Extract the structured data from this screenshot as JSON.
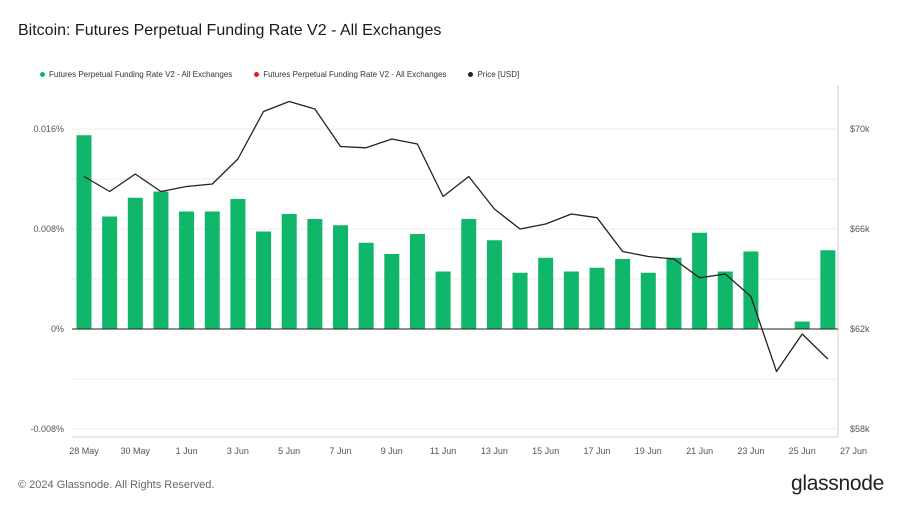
{
  "header": {
    "title": "Bitcoin: Futures Perpetual Funding Rate V2 - All Exchanges"
  },
  "legend": [
    {
      "label": "Futures Perpetual Funding Rate V2 - All Exchanges",
      "color": "#10b66a"
    },
    {
      "label": "Futures Perpetual Funding Rate V2 - All Exchanges",
      "color": "#e11d1d"
    },
    {
      "label": "Price [USD]",
      "color": "#222222"
    }
  ],
  "footer": {
    "copyright": "© 2024 Glassnode. All Rights Reserved.",
    "brand": "glassnode"
  },
  "chart_data": {
    "type": "bar",
    "dates": [
      "28 May",
      "29 May",
      "30 May",
      "31 May",
      "1 Jun",
      "2 Jun",
      "3 Jun",
      "4 Jun",
      "5 Jun",
      "6 Jun",
      "7 Jun",
      "8 Jun",
      "9 Jun",
      "10 Jun",
      "11 Jun",
      "12 Jun",
      "13 Jun",
      "14 Jun",
      "15 Jun",
      "16 Jun",
      "17 Jun",
      "18 Jun",
      "19 Jun",
      "20 Jun",
      "21 Jun",
      "22 Jun",
      "23 Jun",
      "24 Jun",
      "25 Jun",
      "26 Jun"
    ],
    "xtick_labels": [
      "28 May",
      "30 May",
      "1 Jun",
      "3 Jun",
      "5 Jun",
      "7 Jun",
      "9 Jun",
      "11 Jun",
      "13 Jun",
      "15 Jun",
      "17 Jun",
      "19 Jun",
      "21 Jun",
      "23 Jun",
      "25 Jun",
      "27 Jun"
    ],
    "series": [
      {
        "name": "Futures Perpetual Funding Rate V2 - All Exchanges",
        "axis": "left",
        "color": "#10b66a",
        "values": [
          0.0155,
          0.009,
          0.0105,
          0.011,
          0.0094,
          0.0094,
          0.0104,
          0.0078,
          0.0092,
          0.0088,
          0.0083,
          0.0069,
          0.006,
          0.0076,
          0.0046,
          0.0088,
          0.0071,
          0.0045,
          0.0057,
          0.0046,
          0.0049,
          0.0056,
          0.0045,
          0.0057,
          0.0077,
          0.0046,
          0.0062,
          null,
          0.0006,
          0.0063
        ]
      },
      {
        "name": "Price [USD]",
        "axis": "right",
        "color": "#222222",
        "values": [
          68100,
          67500,
          68200,
          67500,
          67700,
          67800,
          68800,
          70700,
          71100,
          70800,
          69300,
          69250,
          69600,
          69400,
          67300,
          68100,
          66800,
          66000,
          66200,
          66600,
          66450,
          65100,
          64900,
          64800,
          64050,
          64200,
          63300,
          60300,
          61800,
          60800
        ]
      }
    ],
    "y_left": {
      "ticks": [
        "0.016%",
        "0.008%",
        "0%",
        "-0.008%"
      ],
      "min": -0.008,
      "max": 0.016
    },
    "y_right": {
      "ticks": [
        "$70k",
        "$66k",
        "$62k",
        "$58k"
      ],
      "min": 58000,
      "max": 70000
    },
    "grid": true,
    "legend_position": "top-left"
  }
}
